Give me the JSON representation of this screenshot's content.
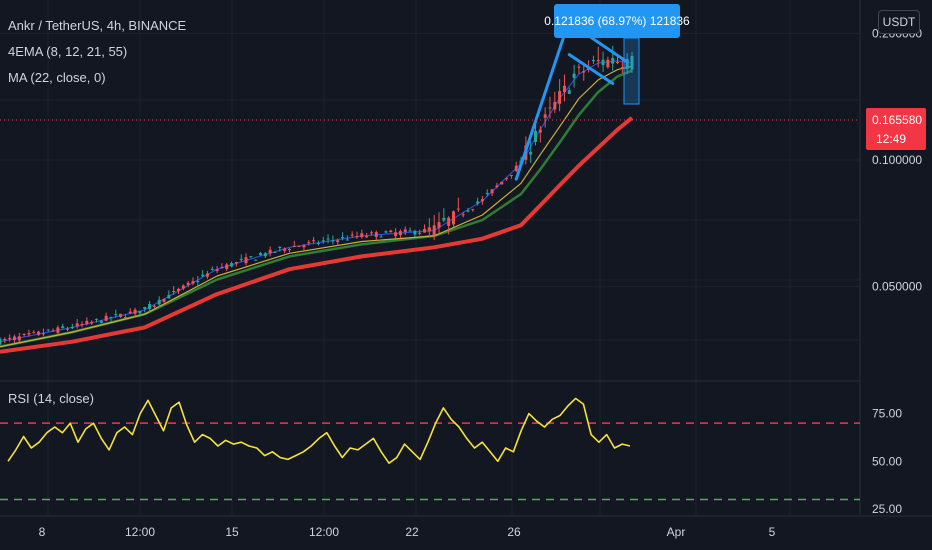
{
  "legend": {
    "symbol": "Ankr / TetherUS, 4h, BINANCE",
    "ema": "4EMA (8, 12, 21, 55)",
    "ma": "MA (22, close, 0)",
    "rsi": "RSI (14, close)"
  },
  "currency_button": "USDT",
  "measure_callout": "0.121836 (68.97%) 121836",
  "last_price": {
    "price": "0.165580",
    "countdown": "12:49"
  },
  "colors": {
    "background": "#131722",
    "grid": "#1e222d",
    "candle_up": "#26a69a",
    "candle_down": "#ef5350",
    "ema_fast": "#2a4bd7",
    "ema_mid": "#c9b03a",
    "ema_slow": "#2e7d32",
    "ma": "#e53935",
    "rsi": "#f5e23b",
    "rsi_upper_band": "#f23645",
    "rsi_lower_band": "#4caf50",
    "drawing": "#2196f3"
  },
  "chart_data": {
    "type": "line",
    "price_axis": {
      "ticks": [
        "0.200000",
        "0.100000",
        "0.050000"
      ],
      "scale": "log",
      "range": [
        0.03,
        0.24
      ]
    },
    "time_axis": {
      "ticks": [
        "8",
        "12:00",
        "15",
        "12:00",
        "22",
        "26",
        "Apr",
        "5"
      ]
    },
    "rsi_axis": {
      "ticks": [
        "75.00",
        "50.00",
        "25.00"
      ],
      "range": [
        25,
        90
      ]
    },
    "series": [
      {
        "name": "MA (22, close, 0)",
        "x": [
          0,
          15,
          30,
          45,
          60,
          75,
          90,
          100,
          108,
          112,
          116,
          120,
          124,
          128,
          131
        ],
        "values": [
          0.035,
          0.037,
          0.04,
          0.048,
          0.055,
          0.059,
          0.062,
          0.065,
          0.07,
          0.078,
          0.087,
          0.097,
          0.107,
          0.118,
          0.126
        ]
      },
      {
        "name": "EMA 55",
        "x": [
          0,
          15,
          30,
          45,
          60,
          75,
          90,
          100,
          108,
          112,
          116,
          120,
          124,
          128,
          131
        ],
        "values": [
          0.036,
          0.039,
          0.043,
          0.052,
          0.059,
          0.063,
          0.066,
          0.072,
          0.083,
          0.095,
          0.11,
          0.128,
          0.145,
          0.158,
          0.163
        ]
      },
      {
        "name": "EMA 21",
        "x": [
          0,
          15,
          30,
          45,
          60,
          75,
          90,
          100,
          108,
          112,
          116,
          120,
          124,
          128,
          131
        ],
        "values": [
          0.036,
          0.039,
          0.043,
          0.053,
          0.06,
          0.064,
          0.066,
          0.074,
          0.088,
          0.103,
          0.12,
          0.14,
          0.155,
          0.164,
          0.167
        ]
      },
      {
        "name": "EMA 8",
        "x": [
          0,
          15,
          30,
          45,
          60,
          75,
          90,
          100,
          108,
          112,
          116,
          120,
          124,
          128,
          131
        ],
        "values": [
          0.037,
          0.04,
          0.044,
          0.055,
          0.062,
          0.066,
          0.068,
          0.08,
          0.098,
          0.118,
          0.14,
          0.16,
          0.17,
          0.172,
          0.17
        ]
      },
      {
        "name": "RSI (14, close)",
        "values": [
          50,
          56,
          63,
          57,
          60,
          65,
          68,
          65,
          70,
          60,
          67,
          70,
          62,
          56,
          65,
          68,
          64,
          75,
          82,
          74,
          66,
          78,
          81,
          69,
          60,
          64,
          62,
          58,
          61,
          59,
          60,
          58,
          57,
          53,
          55,
          52,
          51,
          53,
          55,
          58,
          62,
          65,
          58,
          52,
          57,
          56,
          59,
          62,
          55,
          49,
          52,
          59,
          55,
          51,
          60,
          70,
          78,
          72,
          68,
          62,
          57,
          60,
          55,
          50,
          57,
          55,
          66,
          75,
          71,
          68,
          72,
          74,
          79,
          83,
          80,
          64,
          60,
          64,
          57,
          59,
          58
        ]
      }
    ],
    "drawings": [
      {
        "type": "trendline",
        "points": [
          [
            107,
            0.09
          ],
          [
            118,
            0.215
          ]
        ]
      },
      {
        "type": "trendline",
        "points": [
          [
            118,
            0.212
          ],
          [
            130,
            0.171
          ]
        ]
      },
      {
        "type": "trendline",
        "points": [
          [
            118,
            0.178
          ],
          [
            127,
            0.152
          ]
        ]
      }
    ]
  }
}
